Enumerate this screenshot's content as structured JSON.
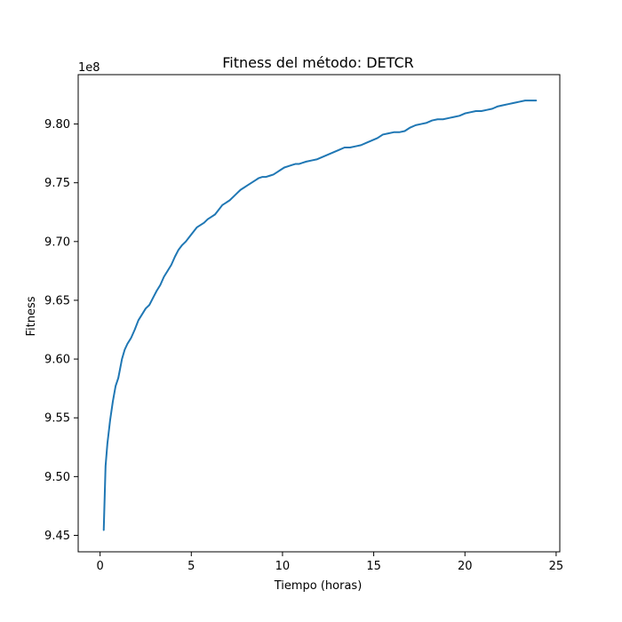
{
  "chart_data": {
    "type": "line",
    "title": "Fitness del método: DETCR",
    "xlabel": "Tiempo (horas)",
    "ylabel": "Fitness",
    "y_offset_label": "1e8",
    "xlim": [
      -1.2,
      25.2
    ],
    "ylim": [
      9.436,
      9.842
    ],
    "x_ticks": [
      0,
      5,
      10,
      15,
      20,
      25
    ],
    "x_tick_labels": [
      "0",
      "5",
      "10",
      "15",
      "20",
      "25"
    ],
    "y_ticks": [
      9.45,
      9.5,
      9.55,
      9.6,
      9.65,
      9.7,
      9.75,
      9.8
    ],
    "y_tick_labels": [
      "9.45",
      "9.50",
      "9.55",
      "9.60",
      "9.65",
      "9.70",
      "9.75",
      "9.80"
    ],
    "grid": false,
    "legend": "none",
    "colors": {
      "line": "#1f77b4",
      "axis": "#000000",
      "background": "#ffffff"
    },
    "series": [
      {
        "x": [
          0.2,
          0.3,
          0.4,
          0.55,
          0.7,
          0.85,
          1.0,
          1.1,
          1.2,
          1.35,
          1.5,
          1.7,
          1.9,
          2.1,
          2.3,
          2.5,
          2.7,
          2.9,
          3.1,
          3.3,
          3.5,
          3.7,
          3.9,
          4.1,
          4.3,
          4.5,
          4.7,
          4.9,
          5.1,
          5.3,
          5.5,
          5.7,
          5.9,
          6.1,
          6.3,
          6.5,
          6.7,
          6.9,
          7.1,
          7.3,
          7.5,
          7.7,
          7.9,
          8.1,
          8.3,
          8.5,
          8.7,
          8.9,
          9.1,
          9.3,
          9.5,
          9.7,
          9.9,
          10.1,
          10.3,
          10.5,
          10.7,
          10.9,
          11.1,
          11.3,
          11.6,
          11.9,
          12.2,
          12.5,
          12.8,
          13.1,
          13.4,
          13.7,
          14.0,
          14.3,
          14.6,
          14.9,
          15.2,
          15.5,
          15.8,
          16.1,
          16.4,
          16.7,
          17.0,
          17.3,
          17.6,
          17.9,
          18.2,
          18.5,
          18.8,
          19.1,
          19.4,
          19.7,
          20.0,
          20.3,
          20.6,
          20.9,
          21.2,
          21.5,
          21.8,
          22.1,
          22.4,
          22.7,
          23.0,
          23.3,
          23.6,
          23.9
        ],
        "y": [
          9.4545,
          9.509,
          9.528,
          9.548,
          9.564,
          9.577,
          9.584,
          9.592,
          9.6,
          9.608,
          9.613,
          9.618,
          9.625,
          9.633,
          9.638,
          9.643,
          9.646,
          9.652,
          9.658,
          9.663,
          9.67,
          9.675,
          9.68,
          9.687,
          9.693,
          9.697,
          9.7,
          9.704,
          9.708,
          9.712,
          9.714,
          9.716,
          9.719,
          9.721,
          9.723,
          9.727,
          9.731,
          9.733,
          9.735,
          9.738,
          9.741,
          9.744,
          9.746,
          9.748,
          9.75,
          9.752,
          9.754,
          9.755,
          9.755,
          9.756,
          9.757,
          9.759,
          9.761,
          9.763,
          9.764,
          9.765,
          9.766,
          9.766,
          9.767,
          9.768,
          9.769,
          9.77,
          9.772,
          9.774,
          9.776,
          9.778,
          9.78,
          9.78,
          9.781,
          9.782,
          9.784,
          9.786,
          9.788,
          9.791,
          9.792,
          9.793,
          9.793,
          9.794,
          9.797,
          9.799,
          9.8,
          9.801,
          9.803,
          9.804,
          9.804,
          9.805,
          9.806,
          9.807,
          9.809,
          9.81,
          9.811,
          9.811,
          9.812,
          9.813,
          9.815,
          9.816,
          9.817,
          9.818,
          9.819,
          9.82,
          9.82,
          9.82
        ]
      }
    ]
  }
}
